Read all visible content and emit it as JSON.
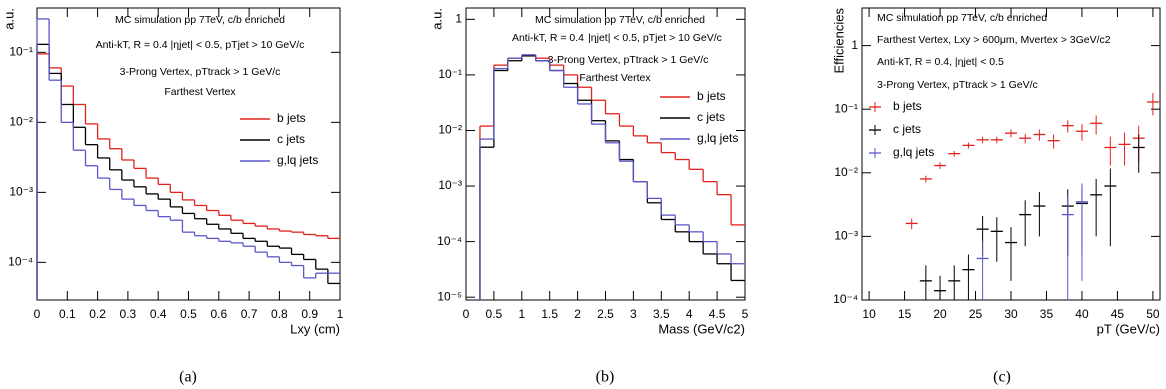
{
  "chart_data": [
    {
      "type": "histogram",
      "log_y": true,
      "annotations": [
        "MC simulation pp 7TeV, c/b enriched",
        "Anti-kT, R = 0.4   |ηjet| < 0.5, pTjet > 10 GeV/c",
        "3-Prong Vertex, pTtrack > 1 GeV/c",
        "Farthest Vertex"
      ],
      "x_label": "Lxy (cm)",
      "y_label": "a.u.",
      "caption": "(a)",
      "xlim": [
        0,
        1
      ],
      "xticks": [
        0,
        0.1,
        0.2,
        0.3,
        0.4,
        0.5,
        0.6,
        0.7,
        0.8,
        0.9,
        1
      ],
      "ylim": [
        2.9e-05,
        0.43
      ],
      "yticks": [
        {
          "value": 0.0001,
          "label": "10⁻⁴"
        },
        {
          "value": 0.001,
          "label": "10⁻³"
        },
        {
          "value": 0.01,
          "label": "10⁻²"
        },
        {
          "value": 0.1,
          "label": "10⁻¹"
        }
      ],
      "bins": [
        0,
        0.04,
        0.08,
        0.12,
        0.16,
        0.2,
        0.24,
        0.28,
        0.32,
        0.36,
        0.4,
        0.44,
        0.48,
        0.52,
        0.56,
        0.6,
        0.64,
        0.68,
        0.72,
        0.76,
        0.8,
        0.84,
        0.88,
        0.92,
        0.96,
        1
      ],
      "series": [
        {
          "name": "b jets",
          "color": "#e0221c",
          "values": [
            0.095,
            0.06,
            0.033,
            0.018,
            0.0095,
            0.0058,
            0.0042,
            0.0029,
            0.0022,
            0.0016,
            0.0013,
            0.001,
            0.00078,
            0.00065,
            0.00055,
            0.00047,
            0.0004,
            0.00036,
            0.00033,
            0.0003,
            0.00028,
            0.00027,
            0.00025,
            0.00024,
            0.00022
          ]
        },
        {
          "name": "c jets",
          "color": "#000000",
          "values": [
            0.13,
            0.05,
            0.018,
            0.0085,
            0.0048,
            0.0031,
            0.0021,
            0.0015,
            0.0012,
            0.00095,
            0.0008,
            0.00062,
            0.0005,
            0.00042,
            0.00035,
            0.0003,
            0.00026,
            0.00022,
            0.0002,
            0.00017,
            0.00016,
            0.00013,
            0.00011,
            8e-05,
            5e-05
          ]
        },
        {
          "name": "g,lq jets",
          "color": "#5b57c8",
          "values": [
            0.3,
            0.04,
            0.01,
            0.004,
            0.0024,
            0.0016,
            0.0011,
            0.0008,
            0.00065,
            0.00055,
            0.00045,
            0.0004,
            0.00027,
            0.00024,
            0.00022,
            0.0002,
            0.00019,
            0.00017,
            0.00014,
            0.00012,
            0.0001,
            9e-05,
            6e-05,
            7e-05,
            7e-05
          ]
        }
      ]
    },
    {
      "type": "histogram",
      "log_y": true,
      "annotations": [
        "MC simulation pp 7TeV, c/b enriched",
        "Anti-kT, R = 0.4",
        "|ηjet| < 0.5, pTjet > 10 GeV/c",
        "3-Prong Vertex, pTtrack > 1 GeV/c",
        "Farthest Vertex"
      ],
      "x_label": "Mass (GeV/c2)",
      "y_label": "a.u.",
      "caption": "(b)",
      "xlim": [
        0,
        5
      ],
      "xticks": [
        0,
        0.5,
        1,
        1.5,
        2,
        2.5,
        3,
        3.5,
        4,
        4.5,
        5
      ],
      "ylim": [
        8.9e-06,
        1.6
      ],
      "yticks": [
        {
          "value": 1e-05,
          "label": "10⁻⁵"
        },
        {
          "value": 0.0001,
          "label": "10⁻⁴"
        },
        {
          "value": 0.001,
          "label": "10⁻³"
        },
        {
          "value": 0.01,
          "label": "10⁻²"
        },
        {
          "value": 0.1,
          "label": "10⁻¹"
        },
        1
      ],
      "bins": [
        0.25,
        0.5,
        0.75,
        1,
        1.25,
        1.5,
        1.75,
        2,
        2.25,
        2.5,
        2.75,
        3,
        3.25,
        3.5,
        3.75,
        4,
        4.25,
        4.5,
        4.75,
        5
      ],
      "series": [
        {
          "name": "b jets",
          "color": "#e0221c",
          "values": [
            0.012,
            0.15,
            0.2,
            0.22,
            0.2,
            0.15,
            0.1,
            0.06,
            0.035,
            0.02,
            0.012,
            0.008,
            0.006,
            0.004,
            0.003,
            0.002,
            0.0012,
            0.0007,
            0.0002
          ]
        },
        {
          "name": "c jets",
          "color": "#000000",
          "values": [
            0.005,
            0.12,
            0.18,
            0.22,
            0.18,
            0.12,
            0.07,
            0.035,
            0.015,
            0.0065,
            0.003,
            0.0012,
            0.0005,
            0.00025,
            0.00015,
            0.0001,
            6e-05,
            4e-05,
            2e-05
          ]
        },
        {
          "name": "g,lq jets",
          "color": "#5b57c8",
          "values": [
            0.007,
            0.13,
            0.2,
            0.23,
            0.18,
            0.12,
            0.06,
            0.03,
            0.013,
            0.006,
            0.0028,
            0.0012,
            0.0006,
            0.0003,
            0.0002,
            0.00015,
            0.0001,
            6e-05,
            4e-05
          ]
        }
      ]
    },
    {
      "type": "scatter",
      "log_y": true,
      "annotations": [
        "MC simulation pp 7TeV, c/b enriched",
        "Farthest Vertex, Lxy > 600μm, Mvertex > 3GeV/c2",
        "Anti-kT, R = 0.4, |ηjet| < 0.5",
        "3-Prong Vertex, pTtrack > 1 GeV/c"
      ],
      "x_label": "pT (GeV/c)",
      "y_label": "Efficiencies",
      "caption": "(c)",
      "xlim": [
        9,
        51
      ],
      "xticks": [
        10,
        15,
        20,
        25,
        30,
        35,
        40,
        45,
        50
      ],
      "ylim": [
        0.0001,
        3.9
      ],
      "yticks": [
        {
          "value": 0.0001,
          "label": "10⁻⁴"
        },
        {
          "value": 0.001,
          "label": "10⁻³"
        },
        {
          "value": 0.01,
          "label": "10⁻²"
        },
        {
          "value": 0.1,
          "label": "10⁻¹"
        },
        1
      ],
      "series": [
        {
          "name": "b jets",
          "color": "#e0221c",
          "x": [
            16,
            18,
            20,
            22,
            24,
            26,
            28,
            30,
            32,
            34,
            36,
            38,
            40,
            42,
            44,
            46,
            48,
            50
          ],
          "values": [
            0.0016,
            0.008,
            0.013,
            0.02,
            0.027,
            0.033,
            0.033,
            0.042,
            0.035,
            0.04,
            0.032,
            0.055,
            0.045,
            0.06,
            0.025,
            0.028,
            0.035,
            0.13
          ],
          "errors": [
            0.0003,
            0.001,
            0.0015,
            0.002,
            0.003,
            0.004,
            0.004,
            0.006,
            0.006,
            0.008,
            0.008,
            0.012,
            0.013,
            0.02,
            0.012,
            0.015,
            0.02,
            0.05
          ]
        },
        {
          "name": "c jets",
          "color": "#000000",
          "x": [
            18,
            20,
            22,
            24,
            26,
            28,
            30,
            32,
            34,
            38,
            40,
            42,
            44,
            48
          ],
          "values": [
            0.0002,
            0.00014,
            0.0002,
            0.0003,
            0.0013,
            0.0012,
            0.0008,
            0.0022,
            0.003,
            0.003,
            0.0033,
            0.0045,
            0.0062,
            0.025
          ],
          "errors": [
            0.00015,
            0.0001,
            0.00015,
            0.00022,
            0.0008,
            0.0008,
            0.0006,
            0.0015,
            0.002,
            0.0025,
            0.0028,
            0.0035,
            0.0055,
            0.015
          ]
        },
        {
          "name": "g,lq jets",
          "color": "#5b57c8",
          "x": [
            26,
            38,
            40
          ],
          "values": [
            0.00045,
            0.0022,
            0.0035
          ],
          "errors": [
            0.0004,
            0.0021,
            0.0033
          ]
        }
      ]
    }
  ]
}
